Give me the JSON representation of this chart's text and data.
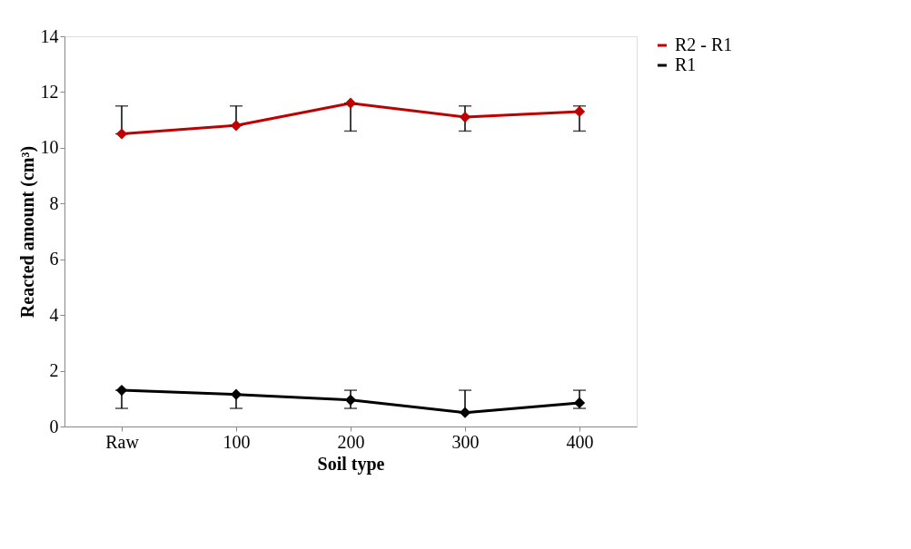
{
  "chart_data": {
    "type": "line",
    "xlabel": "Soil type",
    "ylabel": "Reacted amount  (cm³)",
    "categories": [
      "Raw",
      "100",
      "200",
      "300",
      "400"
    ],
    "series": [
      {
        "name": "R2 - R1",
        "color": "#c00000",
        "values": [
          10.5,
          10.8,
          11.6,
          11.1,
          11.3
        ],
        "errors": [
          [
            10.5,
            11.5
          ],
          [
            10.8,
            11.5
          ],
          [
            10.6,
            11.6
          ],
          [
            10.6,
            11.5
          ],
          [
            10.6,
            11.5
          ]
        ]
      },
      {
        "name": "R1",
        "color": "#000000",
        "values": [
          1.3,
          1.15,
          0.95,
          0.5,
          0.85
        ],
        "errors": [
          [
            0.65,
            1.3
          ],
          [
            0.65,
            1.15
          ],
          [
            0.65,
            1.3
          ],
          [
            0.5,
            1.3
          ],
          [
            0.65,
            1.3
          ]
        ]
      }
    ],
    "ylim": [
      0,
      14
    ],
    "yticks": [
      0,
      2,
      4,
      6,
      8,
      10,
      12,
      14
    ],
    "grid": false,
    "legend": "right",
    "marker": "diamond",
    "line_style": "solid"
  }
}
